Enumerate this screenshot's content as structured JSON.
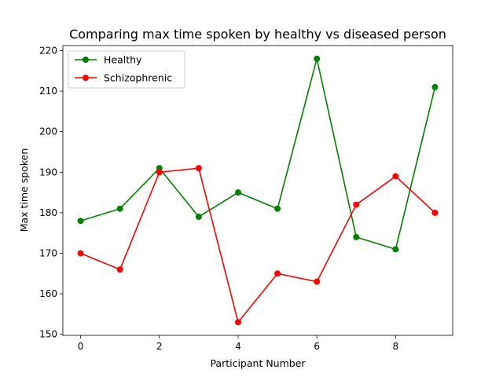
{
  "chart_data": {
    "type": "line",
    "title": "Comparing max time spoken by healthy vs diseased person",
    "xlabel": "Participant Number",
    "ylabel": "Max time spoken",
    "x": [
      0,
      1,
      2,
      3,
      4,
      5,
      6,
      7,
      8,
      9
    ],
    "xlim": [
      -0.45,
      9.45
    ],
    "ylim": [
      149.75,
      221.25
    ],
    "xticks": [
      0,
      2,
      4,
      6,
      8
    ],
    "yticks": [
      150,
      160,
      170,
      180,
      190,
      200,
      210,
      220
    ],
    "grid": false,
    "legend_position": "top-left",
    "series": [
      {
        "name": "Healthy",
        "color": "#008000",
        "marker": "circle",
        "values": [
          178,
          181,
          191,
          179,
          185,
          181,
          218,
          174,
          171,
          211
        ]
      },
      {
        "name": "Schizophrenic",
        "color": "#ff0000",
        "marker": "circle",
        "values": [
          170,
          166,
          190,
          191,
          153,
          165,
          163,
          182,
          189,
          180
        ]
      }
    ]
  }
}
